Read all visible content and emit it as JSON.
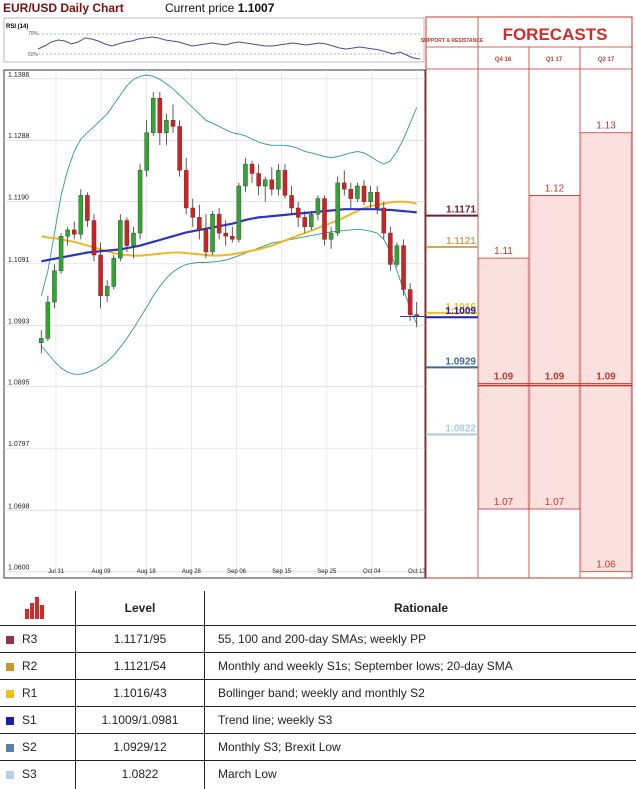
{
  "header": {
    "title": "EUR/USD Daily Chart",
    "price_label": "Current price",
    "price_value": "1.1007"
  },
  "rsi_label": "RSI (14)",
  "rsi_levels": [
    "70%",
    "50%"
  ],
  "forecasts": {
    "title": "FORECASTS",
    "sr_label": "SUPPORT & RESISTANCE",
    "columns": [
      "Q4 16",
      "Q1 17",
      "Q2 17"
    ]
  },
  "chart_data": {
    "type": "candlestick",
    "title": "EUR/USD Daily Chart",
    "x_ticks": [
      "Jul 31",
      "Aug 09",
      "Aug 18",
      "Aug 28",
      "Sep 06",
      "Sep 15",
      "Sep 25",
      "Oct 04",
      "Oct 13"
    ],
    "y_ticks": [
      1.1386,
      1.1288,
      1.119,
      1.1091,
      1.0993,
      1.0895,
      1.0797,
      1.0698,
      1.06
    ],
    "y_tick_labels": [
      "1.1386",
      "1.1288",
      "1.1190",
      "1.1091",
      "1.0993",
      "1.0895",
      "1.0797",
      "1.0698",
      "1.0600"
    ],
    "ylim": [
      1.059,
      1.14
    ],
    "current_price": 1.1007,
    "candles": [
      {
        "o": 1.0965,
        "h": 1.0985,
        "l": 1.0948,
        "c": 1.0972
      },
      {
        "o": 1.0972,
        "h": 1.104,
        "l": 1.0968,
        "c": 1.103
      },
      {
        "o": 1.103,
        "h": 1.109,
        "l": 1.102,
        "c": 1.108
      },
      {
        "o": 1.108,
        "h": 1.114,
        "l": 1.1075,
        "c": 1.1135
      },
      {
        "o": 1.1135,
        "h": 1.115,
        "l": 1.112,
        "c": 1.1145
      },
      {
        "o": 1.1145,
        "h": 1.1158,
        "l": 1.113,
        "c": 1.1138
      },
      {
        "o": 1.1138,
        "h": 1.121,
        "l": 1.113,
        "c": 1.12
      },
      {
        "o": 1.12,
        "h": 1.1205,
        "l": 1.115,
        "c": 1.116
      },
      {
        "o": 1.116,
        "h": 1.117,
        "l": 1.1095,
        "c": 1.1105
      },
      {
        "o": 1.1105,
        "h": 1.1125,
        "l": 1.102,
        "c": 1.104
      },
      {
        "o": 1.104,
        "h": 1.1065,
        "l": 1.103,
        "c": 1.1055
      },
      {
        "o": 1.1055,
        "h": 1.1105,
        "l": 1.105,
        "c": 1.11
      },
      {
        "o": 1.11,
        "h": 1.117,
        "l": 1.1095,
        "c": 1.116
      },
      {
        "o": 1.116,
        "h": 1.1165,
        "l": 1.111,
        "c": 1.112
      },
      {
        "o": 1.112,
        "h": 1.115,
        "l": 1.11,
        "c": 1.114
      },
      {
        "o": 1.114,
        "h": 1.125,
        "l": 1.113,
        "c": 1.124
      },
      {
        "o": 1.124,
        "h": 1.132,
        "l": 1.123,
        "c": 1.13
      },
      {
        "o": 1.13,
        "h": 1.1365,
        "l": 1.1295,
        "c": 1.1355
      },
      {
        "o": 1.1355,
        "h": 1.1365,
        "l": 1.128,
        "c": 1.13
      },
      {
        "o": 1.13,
        "h": 1.133,
        "l": 1.128,
        "c": 1.132
      },
      {
        "o": 1.132,
        "h": 1.1345,
        "l": 1.13,
        "c": 1.131
      },
      {
        "o": 1.131,
        "h": 1.132,
        "l": 1.123,
        "c": 1.124
      },
      {
        "o": 1.124,
        "h": 1.126,
        "l": 1.117,
        "c": 1.118
      },
      {
        "o": 1.118,
        "h": 1.1195,
        "l": 1.115,
        "c": 1.1165
      },
      {
        "o": 1.1165,
        "h": 1.1185,
        "l": 1.113,
        "c": 1.1145
      },
      {
        "o": 1.1145,
        "h": 1.117,
        "l": 1.11,
        "c": 1.111
      },
      {
        "o": 1.111,
        "h": 1.1175,
        "l": 1.1105,
        "c": 1.117
      },
      {
        "o": 1.117,
        "h": 1.118,
        "l": 1.113,
        "c": 1.114
      },
      {
        "o": 1.114,
        "h": 1.116,
        "l": 1.112,
        "c": 1.1135
      },
      {
        "o": 1.1135,
        "h": 1.115,
        "l": 1.1125,
        "c": 1.113
      },
      {
        "o": 1.113,
        "h": 1.122,
        "l": 1.1125,
        "c": 1.1215
      },
      {
        "o": 1.1215,
        "h": 1.126,
        "l": 1.1205,
        "c": 1.125
      },
      {
        "o": 1.125,
        "h": 1.1255,
        "l": 1.122,
        "c": 1.1235
      },
      {
        "o": 1.1235,
        "h": 1.125,
        "l": 1.12,
        "c": 1.1215
      },
      {
        "o": 1.1215,
        "h": 1.123,
        "l": 1.119,
        "c": 1.1225
      },
      {
        "o": 1.1225,
        "h": 1.1245,
        "l": 1.12,
        "c": 1.121
      },
      {
        "o": 1.121,
        "h": 1.125,
        "l": 1.12,
        "c": 1.124
      },
      {
        "o": 1.124,
        "h": 1.125,
        "l": 1.1195,
        "c": 1.12
      },
      {
        "o": 1.12,
        "h": 1.1215,
        "l": 1.117,
        "c": 1.118
      },
      {
        "o": 1.118,
        "h": 1.119,
        "l": 1.115,
        "c": 1.1165
      },
      {
        "o": 1.1165,
        "h": 1.1175,
        "l": 1.114,
        "c": 1.115
      },
      {
        "o": 1.115,
        "h": 1.1175,
        "l": 1.1145,
        "c": 1.117
      },
      {
        "o": 1.117,
        "h": 1.12,
        "l": 1.116,
        "c": 1.1195
      },
      {
        "o": 1.1195,
        "h": 1.12,
        "l": 1.112,
        "c": 1.113
      },
      {
        "o": 1.113,
        "h": 1.115,
        "l": 1.1115,
        "c": 1.114
      },
      {
        "o": 1.114,
        "h": 1.123,
        "l": 1.1135,
        "c": 1.122
      },
      {
        "o": 1.122,
        "h": 1.124,
        "l": 1.12,
        "c": 1.121
      },
      {
        "o": 1.121,
        "h": 1.122,
        "l": 1.118,
        "c": 1.1195
      },
      {
        "o": 1.1195,
        "h": 1.122,
        "l": 1.119,
        "c": 1.1215
      },
      {
        "o": 1.1215,
        "h": 1.1225,
        "l": 1.1185,
        "c": 1.119
      },
      {
        "o": 1.119,
        "h": 1.1215,
        "l": 1.118,
        "c": 1.1205
      },
      {
        "o": 1.1205,
        "h": 1.1215,
        "l": 1.117,
        "c": 1.118
      },
      {
        "o": 1.118,
        "h": 1.119,
        "l": 1.113,
        "c": 1.114
      },
      {
        "o": 1.114,
        "h": 1.115,
        "l": 1.108,
        "c": 1.109
      },
      {
        "o": 1.109,
        "h": 1.1125,
        "l": 1.1085,
        "c": 1.112
      },
      {
        "o": 1.112,
        "h": 1.113,
        "l": 1.104,
        "c": 1.105
      },
      {
        "o": 1.105,
        "h": 1.106,
        "l": 1.1,
        "c": 1.101
      },
      {
        "o": 1.101,
        "h": 1.103,
        "l": 1.099,
        "c": 1.1007
      }
    ],
    "sma_long": [
      1.1095,
      1.1097,
      1.1099,
      1.1101,
      1.1103,
      1.1105,
      1.1107,
      1.1109,
      1.111,
      1.1111,
      1.1112,
      1.1113,
      1.1114,
      1.1116,
      1.1118,
      1.112,
      1.1123,
      1.1126,
      1.1129,
      1.1132,
      1.1135,
      1.1138,
      1.1141,
      1.1143,
      1.1145,
      1.1147,
      1.1149,
      1.1151,
      1.1153,
      1.1155,
      1.1158,
      1.1161,
      1.1163,
      1.1165,
      1.1166,
      1.1167,
      1.1168,
      1.1169,
      1.117,
      1.1171,
      1.1172,
      1.1173,
      1.1174,
      1.1175,
      1.1176,
      1.1177,
      1.1178,
      1.1178,
      1.1178,
      1.1178,
      1.1178,
      1.1178,
      1.1177,
      1.1177,
      1.1176,
      1.1175,
      1.1174,
      1.1173
    ],
    "sma_short": [
      1.1135,
      1.1133,
      1.1132,
      1.113,
      1.1128,
      1.1126,
      1.1123,
      1.112,
      1.1117,
      1.1114,
      1.1111,
      1.1108,
      1.1106,
      1.1105,
      1.1104,
      1.1104,
      1.1105,
      1.1106,
      1.1107,
      1.1108,
      1.1109,
      1.1109,
      1.1108,
      1.1107,
      1.1106,
      1.1105,
      1.1104,
      1.1104,
      1.1105,
      1.1106,
      1.1108,
      1.111,
      1.1112,
      1.1114,
      1.1117,
      1.112,
      1.1124,
      1.1128,
      1.1132,
      1.1136,
      1.114,
      1.1144,
      1.1148,
      1.1152,
      1.1156,
      1.116,
      1.1165,
      1.117,
      1.1175,
      1.118,
      1.1183,
      1.1185,
      1.1187,
      1.1189,
      1.119,
      1.119,
      1.1189,
      1.1187
    ],
    "bb_upper": [
      1.104,
      1.108,
      1.114,
      1.12,
      1.124,
      1.127,
      1.129,
      1.13,
      1.131,
      1.132,
      1.133,
      1.1345,
      1.136,
      1.1375,
      1.1385,
      1.139,
      1.1392,
      1.139,
      1.1385,
      1.1378,
      1.137,
      1.136,
      1.135,
      1.134,
      1.133,
      1.132,
      1.1315,
      1.131,
      1.1305,
      1.13,
      1.1298,
      1.1295,
      1.129,
      1.1285,
      1.1282,
      1.128,
      1.128,
      1.128,
      1.1278,
      1.1275,
      1.127,
      1.1268,
      1.1265,
      1.1262,
      1.126,
      1.1262,
      1.1265,
      1.1268,
      1.127,
      1.1268,
      1.1262,
      1.1255,
      1.125,
      1.1255,
      1.127,
      1.129,
      1.1315,
      1.134
    ],
    "bb_lower": [
      1.096,
      1.0948,
      1.0935,
      1.0925,
      1.0918,
      1.0915,
      1.0915,
      1.0918,
      1.0922,
      1.0928,
      1.0935,
      1.0945,
      1.0958,
      1.0972,
      1.0988,
      1.1005,
      1.1022,
      1.104,
      1.1055,
      1.1068,
      1.1078,
      1.1085,
      1.109,
      1.1092,
      1.1093,
      1.1093,
      1.1094,
      1.1095,
      1.1097,
      1.11,
      1.1104,
      1.1108,
      1.1112,
      1.1116,
      1.112,
      1.1124,
      1.1126,
      1.1128,
      1.113,
      1.1132,
      1.1134,
      1.1136,
      1.1138,
      1.114,
      1.1142,
      1.1143,
      1.1144,
      1.1145,
      1.1146,
      1.1145,
      1.1143,
      1.114,
      1.113,
      1.111,
      1.108,
      1.105,
      1.102,
      1.0995
    ],
    "rsi": [
      55,
      58,
      62,
      64,
      63,
      60,
      62,
      66,
      65,
      63,
      60,
      58,
      60,
      62,
      63,
      65,
      66,
      67,
      66,
      64,
      63,
      62,
      60,
      58,
      59,
      60,
      61,
      60,
      59,
      61,
      62,
      61,
      60,
      59,
      58,
      58,
      59,
      60,
      61,
      60,
      59,
      60,
      61,
      60,
      58,
      56,
      55,
      56,
      57,
      56,
      55,
      54,
      52,
      50,
      52,
      49,
      46,
      45
    ],
    "support_resistance": [
      {
        "value": "1.1171",
        "color": "#6b1e32"
      },
      {
        "value": "1.1121",
        "color": "#d4a35a"
      },
      {
        "value": "1.1016",
        "color": "#f0c020"
      },
      {
        "value": "1.1009",
        "color": "#1f1fa8"
      },
      {
        "value": "1.0929",
        "color": "#3a6a90"
      },
      {
        "value": "1.0822",
        "color": "#a8cfe0"
      }
    ],
    "forecast_values": {
      "Q4 16": [
        "1.11",
        "1.09",
        "1.07"
      ],
      "Q1 17": [
        "1.12",
        "1.09",
        "1.07"
      ],
      "Q2 17": [
        "1.13",
        "1.09",
        "1.06"
      ]
    }
  },
  "table": {
    "headers": {
      "level": "Level",
      "rationale": "Rationale"
    },
    "rows": [
      {
        "code": "R3",
        "level": "1.1171/95",
        "rationale": "55, 100 and 200-day SMAs; weekly PP",
        "color": "#8c3a4a"
      },
      {
        "code": "R2",
        "level": "1.1121/54",
        "rationale": "Monthly and weekly S1s; September lows; 20-day SMA",
        "color": "#c8962a"
      },
      {
        "code": "R1",
        "level": "1.1016/43",
        "rationale": "Bollinger band; weekly and monthly S2",
        "color": "#f0c020"
      },
      {
        "code": "S1",
        "level": "1.1009/1.0981",
        "rationale": "Trend line; weekly S3",
        "color": "#1a1aa8"
      },
      {
        "code": "S2",
        "level": "1.0929/12",
        "rationale": "Monthly S3; Brexit Low",
        "color": "#5a7fa8"
      },
      {
        "code": "S3",
        "level": "1.0822",
        "rationale": "March Low",
        "color": "#b8cfe6"
      }
    ]
  }
}
